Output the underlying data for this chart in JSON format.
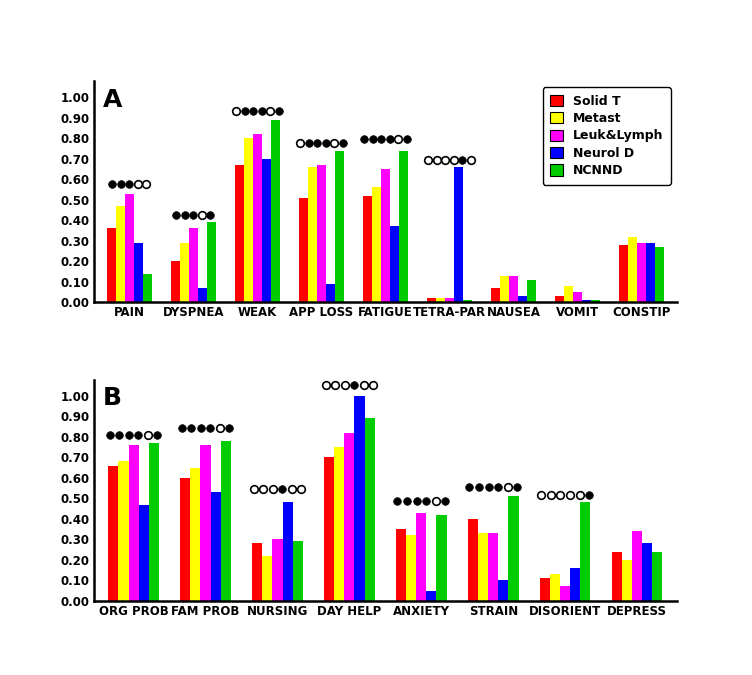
{
  "panel_A": {
    "categories": [
      "PAIN",
      "DYSPNEA",
      "WEAK",
      "APP LOSS",
      "FATIGUE",
      "TETRA-PAR",
      "NAUSEA",
      "VOMIT",
      "CONSTIP"
    ],
    "series": {
      "Solid T": [
        0.36,
        0.2,
        0.67,
        0.51,
        0.52,
        0.02,
        0.07,
        0.03,
        0.28
      ],
      "Metast": [
        0.47,
        0.29,
        0.8,
        0.66,
        0.56,
        0.02,
        0.13,
        0.08,
        0.32
      ],
      "Leuk&Lymph": [
        0.53,
        0.36,
        0.82,
        0.67,
        0.65,
        0.02,
        0.13,
        0.05,
        0.29
      ],
      "Neurol D": [
        0.29,
        0.07,
        0.7,
        0.09,
        0.37,
        0.66,
        0.03,
        0.01,
        0.29
      ],
      "NCNND": [
        0.14,
        0.39,
        0.89,
        0.74,
        0.74,
        0.01,
        0.11,
        0.01,
        0.27
      ]
    },
    "markers": {
      "PAIN": [
        1,
        1,
        1,
        0,
        0
      ],
      "DYSPNEA": [
        1,
        1,
        1,
        0,
        1
      ],
      "WEAK": [
        0,
        1,
        1,
        1,
        0,
        1
      ],
      "APP LOSS": [
        0,
        1,
        1,
        1,
        0,
        1
      ],
      "FATIGUE": [
        1,
        1,
        1,
        1,
        0,
        1
      ],
      "TETRA-PAR": [
        0,
        0,
        0,
        0,
        1,
        0
      ],
      "NAUSEA": [],
      "VOMIT": [],
      "CONSTIP": []
    },
    "marker_y": {
      "PAIN": 0.575,
      "DYSPNEA": 0.425,
      "WEAK": 0.935,
      "APP LOSS": 0.775,
      "FATIGUE": 0.795,
      "TETRA-PAR": 0.695
    }
  },
  "panel_B": {
    "categories": [
      "ORG PROB",
      "FAM PROB",
      "NURSING",
      "DAY HELP",
      "ANXIETY",
      "STRAIN",
      "DISORIENT",
      "DEPRESS"
    ],
    "series": {
      "Solid T": [
        0.66,
        0.6,
        0.28,
        0.7,
        0.35,
        0.4,
        0.11,
        0.24
      ],
      "Metast": [
        0.68,
        0.65,
        0.22,
        0.75,
        0.32,
        0.33,
        0.13,
        0.2
      ],
      "Leuk&Lymph": [
        0.76,
        0.76,
        0.3,
        0.82,
        0.43,
        0.33,
        0.07,
        0.34
      ],
      "Neurol D": [
        0.47,
        0.53,
        0.48,
        1.0,
        0.05,
        0.1,
        0.16,
        0.28
      ],
      "NCNND": [
        0.77,
        0.78,
        0.29,
        0.89,
        0.42,
        0.51,
        0.48,
        0.24
      ]
    },
    "markers": {
      "ORG PROB": [
        1,
        1,
        1,
        1,
        0,
        1
      ],
      "FAM PROB": [
        1,
        1,
        1,
        1,
        0,
        1
      ],
      "NURSING": [
        0,
        0,
        0,
        1,
        0,
        0
      ],
      "DAY HELP": [
        0,
        0,
        0,
        1,
        0,
        0
      ],
      "ANXIETY": [
        1,
        1,
        1,
        1,
        0,
        1
      ],
      "STRAIN": [
        1,
        1,
        1,
        1,
        0,
        1
      ],
      "DISORIENT": [
        0,
        0,
        0,
        0,
        0,
        1
      ],
      "DEPRESS": []
    },
    "marker_y": {
      "ORG PROB": 0.81,
      "FAM PROB": 0.845,
      "NURSING": 0.545,
      "DAY HELP": 1.055,
      "ANXIETY": 0.485,
      "STRAIN": 0.555,
      "DISORIENT": 0.515
    }
  },
  "colors": {
    "Solid T": "#ff0000",
    "Metast": "#ffff00",
    "Leuk&Lymph": "#ff00ff",
    "Neurol D": "#0000ff",
    "NCNND": "#00cc00"
  },
  "bar_width": 0.14,
  "yticks": [
    0.0,
    0.1,
    0.2,
    0.3,
    0.4,
    0.5,
    0.6,
    0.7,
    0.8,
    0.9,
    1.0
  ]
}
